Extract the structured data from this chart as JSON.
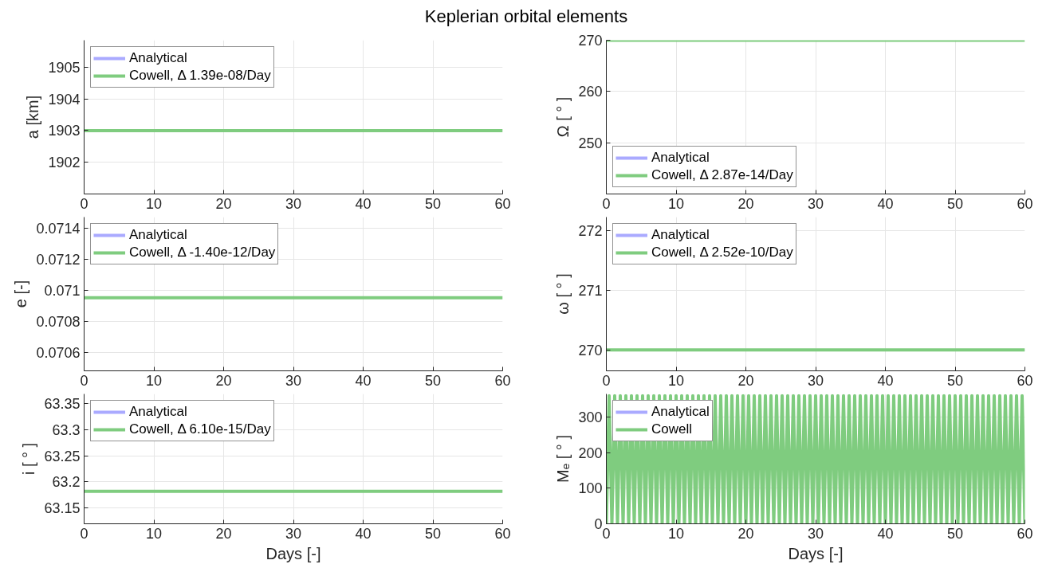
{
  "chart_data": [
    {
      "type": "line",
      "title": "Keplerian orbital elements",
      "ylabel": "a [km]",
      "xlim": [
        0,
        60
      ],
      "xticks": [
        0,
        10,
        20,
        30,
        40,
        50,
        60
      ],
      "ylim": [
        1901,
        1905.85
      ],
      "yticks": [
        1902,
        1903,
        1904,
        1905
      ],
      "grid": true,
      "legend": "top left",
      "series": [
        {
          "name": "Analytical",
          "color": "#aaaaff",
          "values": [
            null,
            null
          ]
        },
        {
          "name": "Cowell, Δ 1.39e-08/Day",
          "color": "#7fcc7f",
          "x": [
            0,
            60
          ],
          "values": [
            1903,
            1903
          ]
        }
      ]
    },
    {
      "type": "line",
      "ylabel": "Ω [ ° ]",
      "xlim": [
        0,
        60
      ],
      "xticks": [
        0,
        10,
        20,
        30,
        40,
        50,
        60
      ],
      "ylim": [
        240,
        270
      ],
      "yticks": [
        250,
        260,
        270
      ],
      "grid": true,
      "legend": "bottom left",
      "series": [
        {
          "name": "Analytical",
          "color": "#aaaaff",
          "values": [
            null,
            null
          ]
        },
        {
          "name": "Cowell, Δ 2.87e-14/Day",
          "color": "#7fcc7f",
          "x": [
            0,
            60
          ],
          "values": [
            270,
            270
          ]
        }
      ]
    },
    {
      "type": "line",
      "ylabel": "e [-]",
      "xlim": [
        0,
        60
      ],
      "xticks": [
        0,
        10,
        20,
        30,
        40,
        50,
        60
      ],
      "ylim": [
        0.07048,
        0.07147
      ],
      "yticks": [
        0.0706,
        0.0708,
        0.071,
        0.0712,
        0.0714
      ],
      "grid": true,
      "legend": "top left",
      "series": [
        {
          "name": "Analytical",
          "color": "#aaaaff",
          "values": [
            null,
            null
          ]
        },
        {
          "name": "Cowell, Δ -1.40e-12/Day",
          "color": "#7fcc7f",
          "x": [
            0,
            60
          ],
          "values": [
            0.07095,
            0.07095
          ]
        }
      ]
    },
    {
      "type": "line",
      "ylabel": "ω [ ° ]",
      "xlim": [
        0,
        60
      ],
      "xticks": [
        0,
        10,
        20,
        30,
        40,
        50,
        60
      ],
      "ylim": [
        269.65,
        272.22
      ],
      "yticks": [
        270,
        271,
        272
      ],
      "grid": true,
      "legend": "top left",
      "series": [
        {
          "name": "Analytical",
          "color": "#aaaaff",
          "values": [
            null,
            null
          ]
        },
        {
          "name": "Cowell, Δ 2.52e-10/Day",
          "color": "#7fcc7f",
          "x": [
            0,
            60
          ],
          "values": [
            270,
            270
          ]
        }
      ]
    },
    {
      "type": "line",
      "ylabel": "i [ ° ]",
      "xlabel": "Days [-]",
      "xlim": [
        0,
        60
      ],
      "xticks": [
        0,
        10,
        20,
        30,
        40,
        50,
        60
      ],
      "ylim": [
        63.12,
        63.368
      ],
      "yticks": [
        63.15,
        63.2,
        63.25,
        63.3,
        63.35
      ],
      "grid": true,
      "legend": "top left",
      "series": [
        {
          "name": "Analytical",
          "color": "#aaaaff",
          "values": [
            null,
            null
          ]
        },
        {
          "name": "Cowell, Δ 6.10e-15/Day",
          "color": "#7fcc7f",
          "x": [
            0,
            60
          ],
          "values": [
            63.182,
            63.182
          ]
        }
      ]
    },
    {
      "type": "line",
      "ylabel": "Mₑ [ ° ]",
      "xlabel": "Days [-]",
      "xlim": [
        0,
        60
      ],
      "xticks": [
        0,
        10,
        20,
        30,
        40,
        50,
        60
      ],
      "ylim": [
        0,
        365
      ],
      "yticks": [
        0,
        100,
        200,
        300
      ],
      "grid": true,
      "legend": "top left",
      "series": [
        {
          "name": "Analytical",
          "color": "#aaaaff",
          "values": [
            null,
            null
          ]
        },
        {
          "name": "Cowell",
          "color": "#7fcc7f",
          "x": [
            0,
            0.4,
            0.8,
            1.2,
            1.6,
            2,
            2.4,
            2.8,
            3.2,
            3.6,
            4,
            4.4,
            4.8,
            5.2,
            5.6,
            6,
            6.4,
            6.8,
            7.2,
            7.6,
            8,
            8.4,
            8.8,
            9.2,
            9.6,
            10,
            10.4,
            10.8,
            11.2,
            11.6,
            12,
            12.4,
            12.8,
            13.2,
            13.6,
            14,
            14.4,
            14.8,
            15.2,
            15.6,
            16,
            16.4,
            16.8,
            17.2,
            17.6,
            18,
            18.4,
            18.8,
            19.2,
            19.6,
            20,
            20.4,
            20.8,
            21.2,
            21.6,
            22,
            22.4,
            22.8,
            23.2,
            23.6,
            24,
            24.4,
            24.8,
            25.2,
            25.6,
            26,
            26.4,
            26.8,
            27.2,
            27.6,
            28,
            28.4,
            28.8,
            29.2,
            29.6,
            30,
            30.4,
            30.8,
            31.2,
            31.6,
            32,
            32.4,
            32.8,
            33.2,
            33.6,
            34,
            34.4,
            34.8,
            35.2,
            35.6,
            36,
            36.4,
            36.8,
            37.2,
            37.6,
            38,
            38.4,
            38.8,
            39.2,
            39.6,
            40,
            40.4,
            40.8,
            41.2,
            41.6,
            42,
            42.4,
            42.8,
            43.2,
            43.6,
            44,
            44.4,
            44.8,
            45.2,
            45.6,
            46,
            46.4,
            46.8,
            47.2,
            47.6,
            48,
            48.4,
            48.8,
            49.2,
            49.6,
            50,
            50.4,
            50.8,
            51.2,
            51.6,
            52,
            52.4,
            52.8,
            53.2,
            53.6,
            54,
            54.4,
            54.8,
            55.2,
            55.6,
            56,
            56.4,
            56.8,
            57.2,
            57.6,
            58,
            58.4,
            58.8,
            59.2,
            59.6,
            60
          ],
          "values": [
            0,
            360,
            0,
            360,
            0,
            360,
            0,
            360,
            0,
            360,
            0,
            360,
            0,
            360,
            0,
            360,
            0,
            360,
            0,
            360,
            0,
            360,
            0,
            360,
            0,
            360,
            0,
            360,
            0,
            360,
            0,
            360,
            0,
            360,
            0,
            360,
            0,
            360,
            0,
            360,
            0,
            360,
            0,
            360,
            0,
            360,
            0,
            360,
            0,
            360,
            0,
            360,
            0,
            360,
            0,
            360,
            0,
            360,
            0,
            360,
            0,
            360,
            0,
            360,
            0,
            360,
            0,
            360,
            0,
            360,
            0,
            360,
            0,
            360,
            0,
            360,
            0,
            360,
            0,
            360,
            0,
            360,
            0,
            360,
            0,
            360,
            0,
            360,
            0,
            360,
            0,
            360,
            0,
            360,
            0,
            360,
            0,
            360,
            0,
            360,
            0,
            360,
            0,
            360,
            0,
            360,
            0,
            360,
            0,
            360,
            0,
            360,
            0,
            360,
            0,
            360,
            0,
            360,
            0,
            360,
            0,
            360,
            0,
            360,
            0,
            360,
            0,
            360,
            0,
            360,
            0,
            360,
            0,
            360,
            0,
            360,
            0,
            360,
            0,
            360,
            0,
            360,
            0,
            360,
            0,
            360,
            0,
            360,
            0,
            360,
            0
          ]
        }
      ]
    }
  ]
}
